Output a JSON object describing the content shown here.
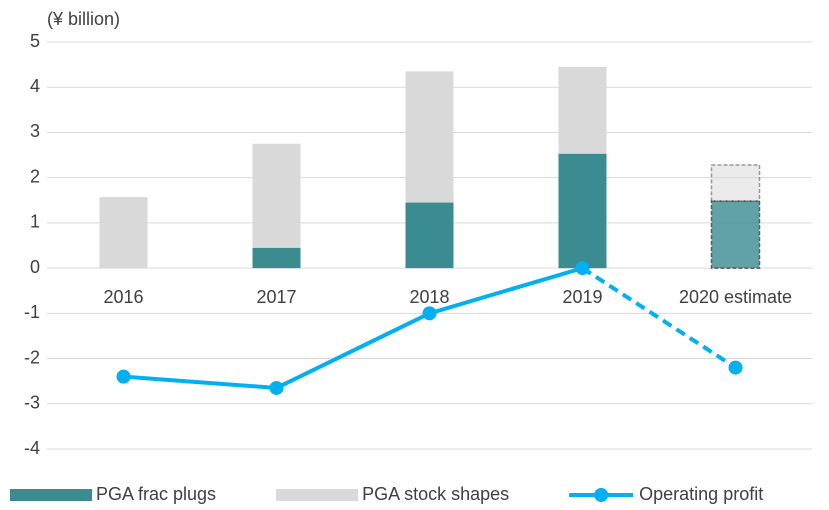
{
  "chart_data": {
    "type": "bar",
    "y_label": "(¥ billion)",
    "categories": [
      "2016",
      "2017",
      "2018",
      "2019",
      "2020 estimate"
    ],
    "series": [
      {
        "name": "PGA frac plugs",
        "color": "#3a8c91",
        "values": [
          0,
          0.45,
          1.45,
          2.53,
          1.48
        ]
      },
      {
        "name": "PGA stock shapes",
        "color": "#d9d9d9",
        "values": [
          1.57,
          2.3,
          2.9,
          1.92,
          0.8
        ]
      },
      {
        "name": "Operating profit",
        "type": "line",
        "color": "#00b0f0",
        "values": [
          -2.4,
          -2.65,
          -1.0,
          0.0,
          -2.2
        ]
      }
    ],
    "ylim": [
      -4,
      5
    ],
    "yticks": [
      -4,
      -3,
      -2,
      -1,
      0,
      1,
      2,
      3,
      4,
      5
    ],
    "grid": true,
    "legend": "bottom"
  }
}
